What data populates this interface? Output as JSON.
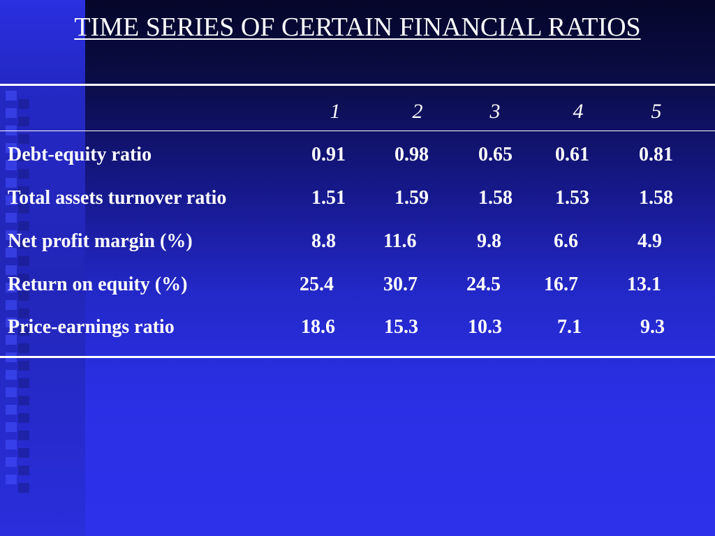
{
  "slide": {
    "title": "TIME SERIES OF CERTAIN FINANCIAL RATIOS"
  },
  "table": {
    "columns": [
      "1",
      "2",
      "3",
      "4",
      "5"
    ],
    "rows": [
      {
        "label": "Debt-equity ratio",
        "values": [
          "0.91",
          "0.98",
          "0.65",
          "0.61",
          "0.81"
        ]
      },
      {
        "label": "Total assets turnover ratio",
        "values": [
          "1.51",
          "1.59",
          "1.58",
          "1.53",
          "1.58"
        ]
      },
      {
        "label": "Net profit margin (%)",
        "values": [
          "8.8",
          "11.6",
          "9.8",
          "6.6",
          "4.9"
        ]
      },
      {
        "label": "Return on equity (%)",
        "values": [
          "25.4",
          "30.7",
          "24.5",
          "16.7",
          "13.1"
        ]
      },
      {
        "label": "Price-earnings ratio",
        "values": [
          "18.6",
          "15.3",
          "10.3",
          "7.1",
          "9.3"
        ]
      }
    ]
  },
  "colors": {
    "background_top": "#05062a",
    "background_bottom": "#2d31ea",
    "text": "#ffffff"
  }
}
